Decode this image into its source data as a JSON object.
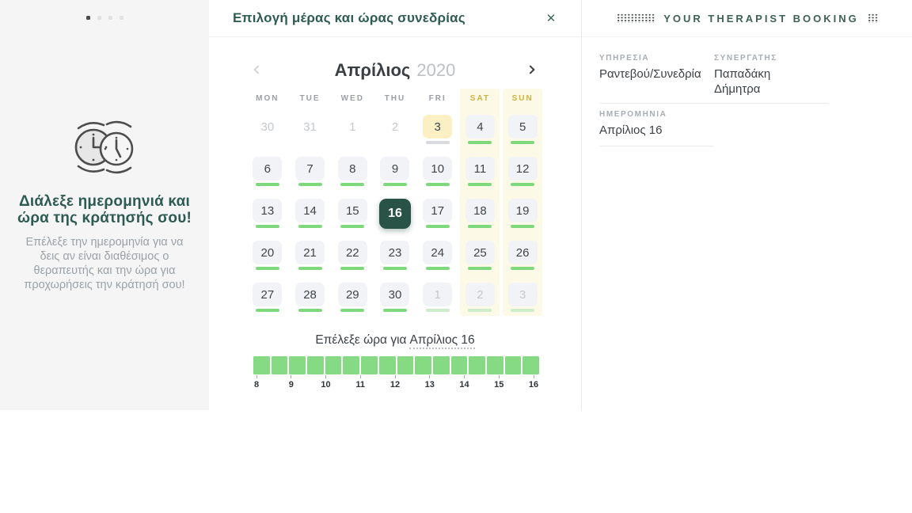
{
  "modal": {
    "title": "Επιλογή μέρας και ώρας συνεδρίας",
    "close_icon": "✕"
  },
  "sidebar": {
    "carousel": {
      "count": 4,
      "active": 0
    },
    "heading": "Διάλεξε ημερομηνιά και ώρα της κράτησής σου!",
    "body": "Επέλεξε την ημερομηνία για να δεις αν είναι διαθέσιμος ο θεραπευτής και την ώρα για προχωρήσεις την κράτησή σου!"
  },
  "calendar": {
    "month": "Απρίλιος",
    "year": "2020",
    "weekdays": [
      "MON",
      "TUE",
      "WED",
      "THU",
      "FRI",
      "SAT",
      "SUN"
    ],
    "selected_day": "16",
    "days": [
      {
        "day": "30",
        "state": "muted"
      },
      {
        "day": "31",
        "state": "muted"
      },
      {
        "day": "1",
        "state": "muted"
      },
      {
        "day": "2",
        "state": "muted"
      },
      {
        "day": "3",
        "state": "today"
      },
      {
        "day": "4",
        "state": "available"
      },
      {
        "day": "5",
        "state": "available"
      },
      {
        "day": "6",
        "state": "available"
      },
      {
        "day": "7",
        "state": "available"
      },
      {
        "day": "8",
        "state": "available"
      },
      {
        "day": "9",
        "state": "available"
      },
      {
        "day": "10",
        "state": "available"
      },
      {
        "day": "11",
        "state": "available"
      },
      {
        "day": "12",
        "state": "available"
      },
      {
        "day": "13",
        "state": "available"
      },
      {
        "day": "14",
        "state": "available"
      },
      {
        "day": "15",
        "state": "available"
      },
      {
        "day": "16",
        "state": "selected"
      },
      {
        "day": "17",
        "state": "available"
      },
      {
        "day": "18",
        "state": "available"
      },
      {
        "day": "19",
        "state": "available"
      },
      {
        "day": "20",
        "state": "available"
      },
      {
        "day": "21",
        "state": "available"
      },
      {
        "day": "22",
        "state": "available"
      },
      {
        "day": "23",
        "state": "available"
      },
      {
        "day": "24",
        "state": "available"
      },
      {
        "day": "25",
        "state": "available"
      },
      {
        "day": "26",
        "state": "available"
      },
      {
        "day": "27",
        "state": "available"
      },
      {
        "day": "28",
        "state": "available"
      },
      {
        "day": "29",
        "state": "available"
      },
      {
        "day": "30",
        "state": "available"
      },
      {
        "day": "1",
        "state": "next"
      },
      {
        "day": "2",
        "state": "next"
      },
      {
        "day": "3",
        "state": "next"
      }
    ]
  },
  "time_picker": {
    "title_prefix": "Επέλεξε ώρα για",
    "title_date": "Απρίλιος 16",
    "slot_count": 16,
    "slots_all_available": true,
    "hour_labels": [
      "8",
      "9",
      "10",
      "11",
      "12",
      "13",
      "14",
      "15",
      "16"
    ]
  },
  "booking": {
    "title": "YOUR THERAPIST BOOKING",
    "fields": [
      {
        "label": "ΥΠΗΡΕΣΙΑ",
        "value": "Ραντεβού/Συνεδρία"
      },
      {
        "label": "ΣΥΝΕΡΓΑΤΗΣ",
        "value": "Παπαδάκη Δήμητρα"
      },
      {
        "label": "ΗΜΕΡΟΜΗΝΙΑ",
        "value": "Απρίλιος 16"
      }
    ]
  },
  "colors": {
    "accent_teal": "#2a5348",
    "heading_teal": "#2e5c52",
    "available_green": "#7ed97c",
    "slot_green": "#85da83",
    "today_yellow": "#faf0c3",
    "weekend_tint": "#fcf9e7",
    "weekend_text_gold": "#cfb23e",
    "muted_gray": "#c3c8cd",
    "sidebar_bg": "#f5f5f6"
  }
}
